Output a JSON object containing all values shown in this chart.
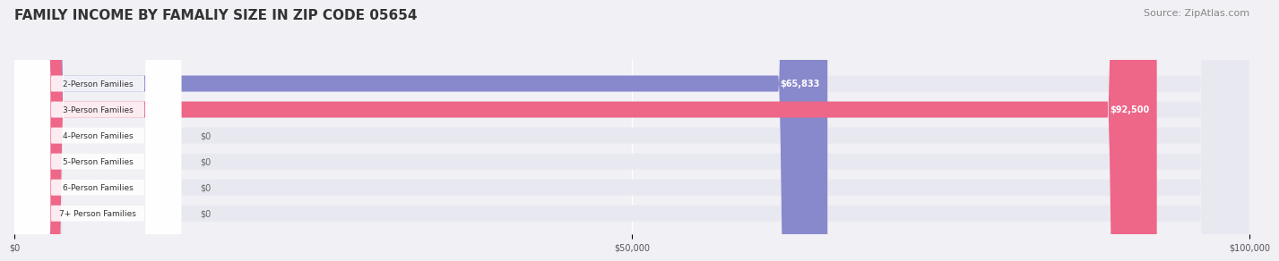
{
  "title": "FAMILY INCOME BY FAMALIY SIZE IN ZIP CODE 05654",
  "source": "Source: ZipAtlas.com",
  "categories": [
    "2-Person Families",
    "3-Person Families",
    "4-Person Families",
    "5-Person Families",
    "6-Person Families",
    "7+ Person Families"
  ],
  "values": [
    65833,
    92500,
    0,
    0,
    0,
    0
  ],
  "bar_colors": [
    "#8888cc",
    "#ee6688",
    "#f5c98a",
    "#f5a0a0",
    "#aabbdd",
    "#ccaacc"
  ],
  "value_labels": [
    "$65,833",
    "$92,500",
    "$0",
    "$0",
    "$0",
    "$0"
  ],
  "xlim": [
    0,
    100000
  ],
  "xticks": [
    0,
    50000,
    100000
  ],
  "xticklabels": [
    "$0",
    "$50,000",
    "$100,000"
  ],
  "background_color": "#f0f0f5",
  "bar_background_color": "#e8e8f0",
  "title_fontsize": 11,
  "source_fontsize": 8,
  "bar_height": 0.62
}
